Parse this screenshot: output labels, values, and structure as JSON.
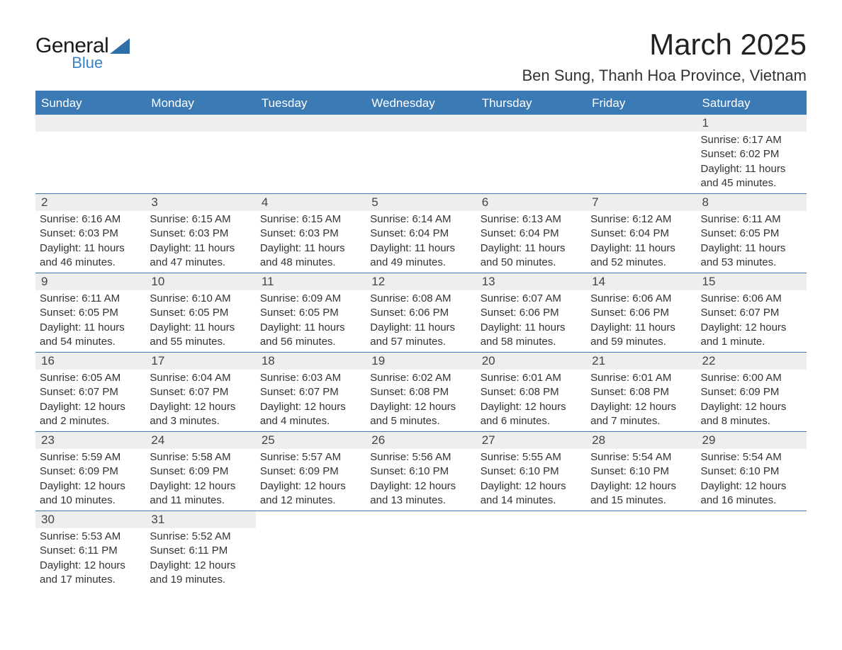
{
  "logo": {
    "line1": "General",
    "line2": "Blue"
  },
  "title": "March 2025",
  "location": "Ben Sung, Thanh Hoa Province, Vietnam",
  "colors": {
    "header_bg": "#3b7ab5",
    "header_text": "#ffffff",
    "strip_bg": "#eeeeee",
    "border": "#3b7ab5",
    "logo_blue": "#3b82c4",
    "logo_triangle": "#2f6fa8",
    "text": "#333333"
  },
  "weekdays": [
    "Sunday",
    "Monday",
    "Tuesday",
    "Wednesday",
    "Thursday",
    "Friday",
    "Saturday"
  ],
  "weeks": [
    [
      {
        "num": "",
        "sunrise": "",
        "sunset": "",
        "daylight1": "",
        "daylight2": ""
      },
      {
        "num": "",
        "sunrise": "",
        "sunset": "",
        "daylight1": "",
        "daylight2": ""
      },
      {
        "num": "",
        "sunrise": "",
        "sunset": "",
        "daylight1": "",
        "daylight2": ""
      },
      {
        "num": "",
        "sunrise": "",
        "sunset": "",
        "daylight1": "",
        "daylight2": ""
      },
      {
        "num": "",
        "sunrise": "",
        "sunset": "",
        "daylight1": "",
        "daylight2": ""
      },
      {
        "num": "",
        "sunrise": "",
        "sunset": "",
        "daylight1": "",
        "daylight2": ""
      },
      {
        "num": "1",
        "sunrise": "Sunrise: 6:17 AM",
        "sunset": "Sunset: 6:02 PM",
        "daylight1": "Daylight: 11 hours",
        "daylight2": "and 45 minutes."
      }
    ],
    [
      {
        "num": "2",
        "sunrise": "Sunrise: 6:16 AM",
        "sunset": "Sunset: 6:03 PM",
        "daylight1": "Daylight: 11 hours",
        "daylight2": "and 46 minutes."
      },
      {
        "num": "3",
        "sunrise": "Sunrise: 6:15 AM",
        "sunset": "Sunset: 6:03 PM",
        "daylight1": "Daylight: 11 hours",
        "daylight2": "and 47 minutes."
      },
      {
        "num": "4",
        "sunrise": "Sunrise: 6:15 AM",
        "sunset": "Sunset: 6:03 PM",
        "daylight1": "Daylight: 11 hours",
        "daylight2": "and 48 minutes."
      },
      {
        "num": "5",
        "sunrise": "Sunrise: 6:14 AM",
        "sunset": "Sunset: 6:04 PM",
        "daylight1": "Daylight: 11 hours",
        "daylight2": "and 49 minutes."
      },
      {
        "num": "6",
        "sunrise": "Sunrise: 6:13 AM",
        "sunset": "Sunset: 6:04 PM",
        "daylight1": "Daylight: 11 hours",
        "daylight2": "and 50 minutes."
      },
      {
        "num": "7",
        "sunrise": "Sunrise: 6:12 AM",
        "sunset": "Sunset: 6:04 PM",
        "daylight1": "Daylight: 11 hours",
        "daylight2": "and 52 minutes."
      },
      {
        "num": "8",
        "sunrise": "Sunrise: 6:11 AM",
        "sunset": "Sunset: 6:05 PM",
        "daylight1": "Daylight: 11 hours",
        "daylight2": "and 53 minutes."
      }
    ],
    [
      {
        "num": "9",
        "sunrise": "Sunrise: 6:11 AM",
        "sunset": "Sunset: 6:05 PM",
        "daylight1": "Daylight: 11 hours",
        "daylight2": "and 54 minutes."
      },
      {
        "num": "10",
        "sunrise": "Sunrise: 6:10 AM",
        "sunset": "Sunset: 6:05 PM",
        "daylight1": "Daylight: 11 hours",
        "daylight2": "and 55 minutes."
      },
      {
        "num": "11",
        "sunrise": "Sunrise: 6:09 AM",
        "sunset": "Sunset: 6:05 PM",
        "daylight1": "Daylight: 11 hours",
        "daylight2": "and 56 minutes."
      },
      {
        "num": "12",
        "sunrise": "Sunrise: 6:08 AM",
        "sunset": "Sunset: 6:06 PM",
        "daylight1": "Daylight: 11 hours",
        "daylight2": "and 57 minutes."
      },
      {
        "num": "13",
        "sunrise": "Sunrise: 6:07 AM",
        "sunset": "Sunset: 6:06 PM",
        "daylight1": "Daylight: 11 hours",
        "daylight2": "and 58 minutes."
      },
      {
        "num": "14",
        "sunrise": "Sunrise: 6:06 AM",
        "sunset": "Sunset: 6:06 PM",
        "daylight1": "Daylight: 11 hours",
        "daylight2": "and 59 minutes."
      },
      {
        "num": "15",
        "sunrise": "Sunrise: 6:06 AM",
        "sunset": "Sunset: 6:07 PM",
        "daylight1": "Daylight: 12 hours",
        "daylight2": "and 1 minute."
      }
    ],
    [
      {
        "num": "16",
        "sunrise": "Sunrise: 6:05 AM",
        "sunset": "Sunset: 6:07 PM",
        "daylight1": "Daylight: 12 hours",
        "daylight2": "and 2 minutes."
      },
      {
        "num": "17",
        "sunrise": "Sunrise: 6:04 AM",
        "sunset": "Sunset: 6:07 PM",
        "daylight1": "Daylight: 12 hours",
        "daylight2": "and 3 minutes."
      },
      {
        "num": "18",
        "sunrise": "Sunrise: 6:03 AM",
        "sunset": "Sunset: 6:07 PM",
        "daylight1": "Daylight: 12 hours",
        "daylight2": "and 4 minutes."
      },
      {
        "num": "19",
        "sunrise": "Sunrise: 6:02 AM",
        "sunset": "Sunset: 6:08 PM",
        "daylight1": "Daylight: 12 hours",
        "daylight2": "and 5 minutes."
      },
      {
        "num": "20",
        "sunrise": "Sunrise: 6:01 AM",
        "sunset": "Sunset: 6:08 PM",
        "daylight1": "Daylight: 12 hours",
        "daylight2": "and 6 minutes."
      },
      {
        "num": "21",
        "sunrise": "Sunrise: 6:01 AM",
        "sunset": "Sunset: 6:08 PM",
        "daylight1": "Daylight: 12 hours",
        "daylight2": "and 7 minutes."
      },
      {
        "num": "22",
        "sunrise": "Sunrise: 6:00 AM",
        "sunset": "Sunset: 6:09 PM",
        "daylight1": "Daylight: 12 hours",
        "daylight2": "and 8 minutes."
      }
    ],
    [
      {
        "num": "23",
        "sunrise": "Sunrise: 5:59 AM",
        "sunset": "Sunset: 6:09 PM",
        "daylight1": "Daylight: 12 hours",
        "daylight2": "and 10 minutes."
      },
      {
        "num": "24",
        "sunrise": "Sunrise: 5:58 AM",
        "sunset": "Sunset: 6:09 PM",
        "daylight1": "Daylight: 12 hours",
        "daylight2": "and 11 minutes."
      },
      {
        "num": "25",
        "sunrise": "Sunrise: 5:57 AM",
        "sunset": "Sunset: 6:09 PM",
        "daylight1": "Daylight: 12 hours",
        "daylight2": "and 12 minutes."
      },
      {
        "num": "26",
        "sunrise": "Sunrise: 5:56 AM",
        "sunset": "Sunset: 6:10 PM",
        "daylight1": "Daylight: 12 hours",
        "daylight2": "and 13 minutes."
      },
      {
        "num": "27",
        "sunrise": "Sunrise: 5:55 AM",
        "sunset": "Sunset: 6:10 PM",
        "daylight1": "Daylight: 12 hours",
        "daylight2": "and 14 minutes."
      },
      {
        "num": "28",
        "sunrise": "Sunrise: 5:54 AM",
        "sunset": "Sunset: 6:10 PM",
        "daylight1": "Daylight: 12 hours",
        "daylight2": "and 15 minutes."
      },
      {
        "num": "29",
        "sunrise": "Sunrise: 5:54 AM",
        "sunset": "Sunset: 6:10 PM",
        "daylight1": "Daylight: 12 hours",
        "daylight2": "and 16 minutes."
      }
    ],
    [
      {
        "num": "30",
        "sunrise": "Sunrise: 5:53 AM",
        "sunset": "Sunset: 6:11 PM",
        "daylight1": "Daylight: 12 hours",
        "daylight2": "and 17 minutes."
      },
      {
        "num": "31",
        "sunrise": "Sunrise: 5:52 AM",
        "sunset": "Sunset: 6:11 PM",
        "daylight1": "Daylight: 12 hours",
        "daylight2": "and 19 minutes."
      },
      {
        "num": "",
        "sunrise": "",
        "sunset": "",
        "daylight1": "",
        "daylight2": ""
      },
      {
        "num": "",
        "sunrise": "",
        "sunset": "",
        "daylight1": "",
        "daylight2": ""
      },
      {
        "num": "",
        "sunrise": "",
        "sunset": "",
        "daylight1": "",
        "daylight2": ""
      },
      {
        "num": "",
        "sunrise": "",
        "sunset": "",
        "daylight1": "",
        "daylight2": ""
      },
      {
        "num": "",
        "sunrise": "",
        "sunset": "",
        "daylight1": "",
        "daylight2": ""
      }
    ]
  ]
}
